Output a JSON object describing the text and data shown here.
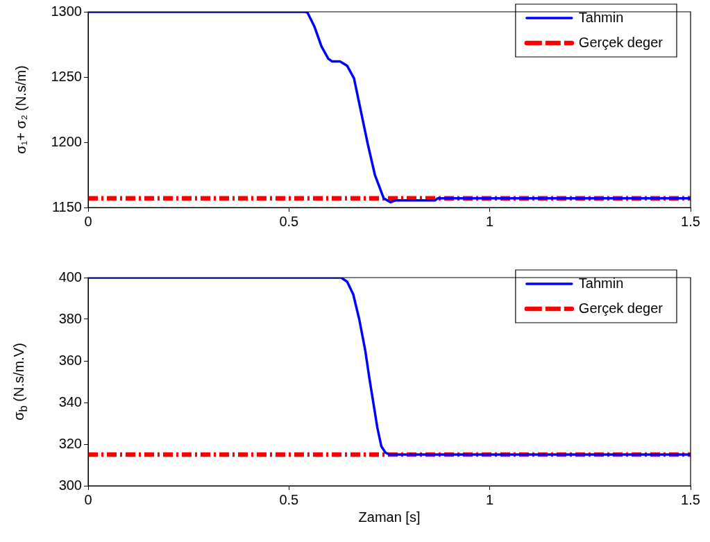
{
  "chart_data": [
    {
      "type": "line",
      "ylabel": "σ₁+ σ₂ (N.s/m)",
      "xlim": [
        0,
        1.5
      ],
      "xticks": [
        0,
        0.5,
        1,
        1.5
      ],
      "ylim": [
        1150,
        1300
      ],
      "yticks": [
        1150,
        1200,
        1250,
        1300
      ],
      "legend": "top right",
      "grid": false,
      "marker": "none",
      "series": [
        {
          "name": "Tahmin",
          "color": "#0000ff",
          "line_style": "solid",
          "x": [
            0,
            0.54,
            0.546,
            0.563,
            0.581,
            0.598,
            0.607,
            0.627,
            0.645,
            0.662,
            0.679,
            0.696,
            0.714,
            0.736,
            0.753,
            0.766,
            0.864,
            0.87,
            1.5
          ],
          "values": [
            1300,
            1300,
            1299.5,
            1289,
            1273.5,
            1264,
            1262,
            1262,
            1258.6,
            1249,
            1224,
            1199,
            1175,
            1157,
            1154,
            1155.5,
            1155.5,
            1157,
            1157
          ]
        },
        {
          "name": "Gerçek deger",
          "color": "#ff0000",
          "line_style": "dashed",
          "x": [
            0,
            1.5
          ],
          "values": [
            1157,
            1157
          ]
        }
      ]
    },
    {
      "type": "line",
      "xlabel": "Zaman [s]",
      "ylabel": "σ$_{b}$ (N.s/m.V)",
      "xlim": [
        0,
        1.5
      ],
      "xticks": [
        0,
        0.5,
        1,
        1.5
      ],
      "ylim": [
        300,
        400
      ],
      "yticks": [
        300,
        320,
        340,
        360,
        380,
        400
      ],
      "legend": "top right",
      "grid": false,
      "marker": "none",
      "series": [
        {
          "name": "Tahmin",
          "color": "#0000ff",
          "line_style": "solid",
          "x": [
            0,
            0.63,
            0.645,
            0.66,
            0.675,
            0.69,
            0.7,
            0.71,
            0.72,
            0.73,
            0.74,
            0.75,
            1.5
          ],
          "values": [
            400,
            400,
            398,
            392,
            380,
            365,
            352,
            340,
            328,
            319,
            316,
            315,
            315
          ]
        },
        {
          "name": "Gerçek deger",
          "color": "#ff0000",
          "line_style": "dashed",
          "x": [
            0,
            1.5
          ],
          "values": [
            315,
            315
          ]
        }
      ]
    }
  ]
}
